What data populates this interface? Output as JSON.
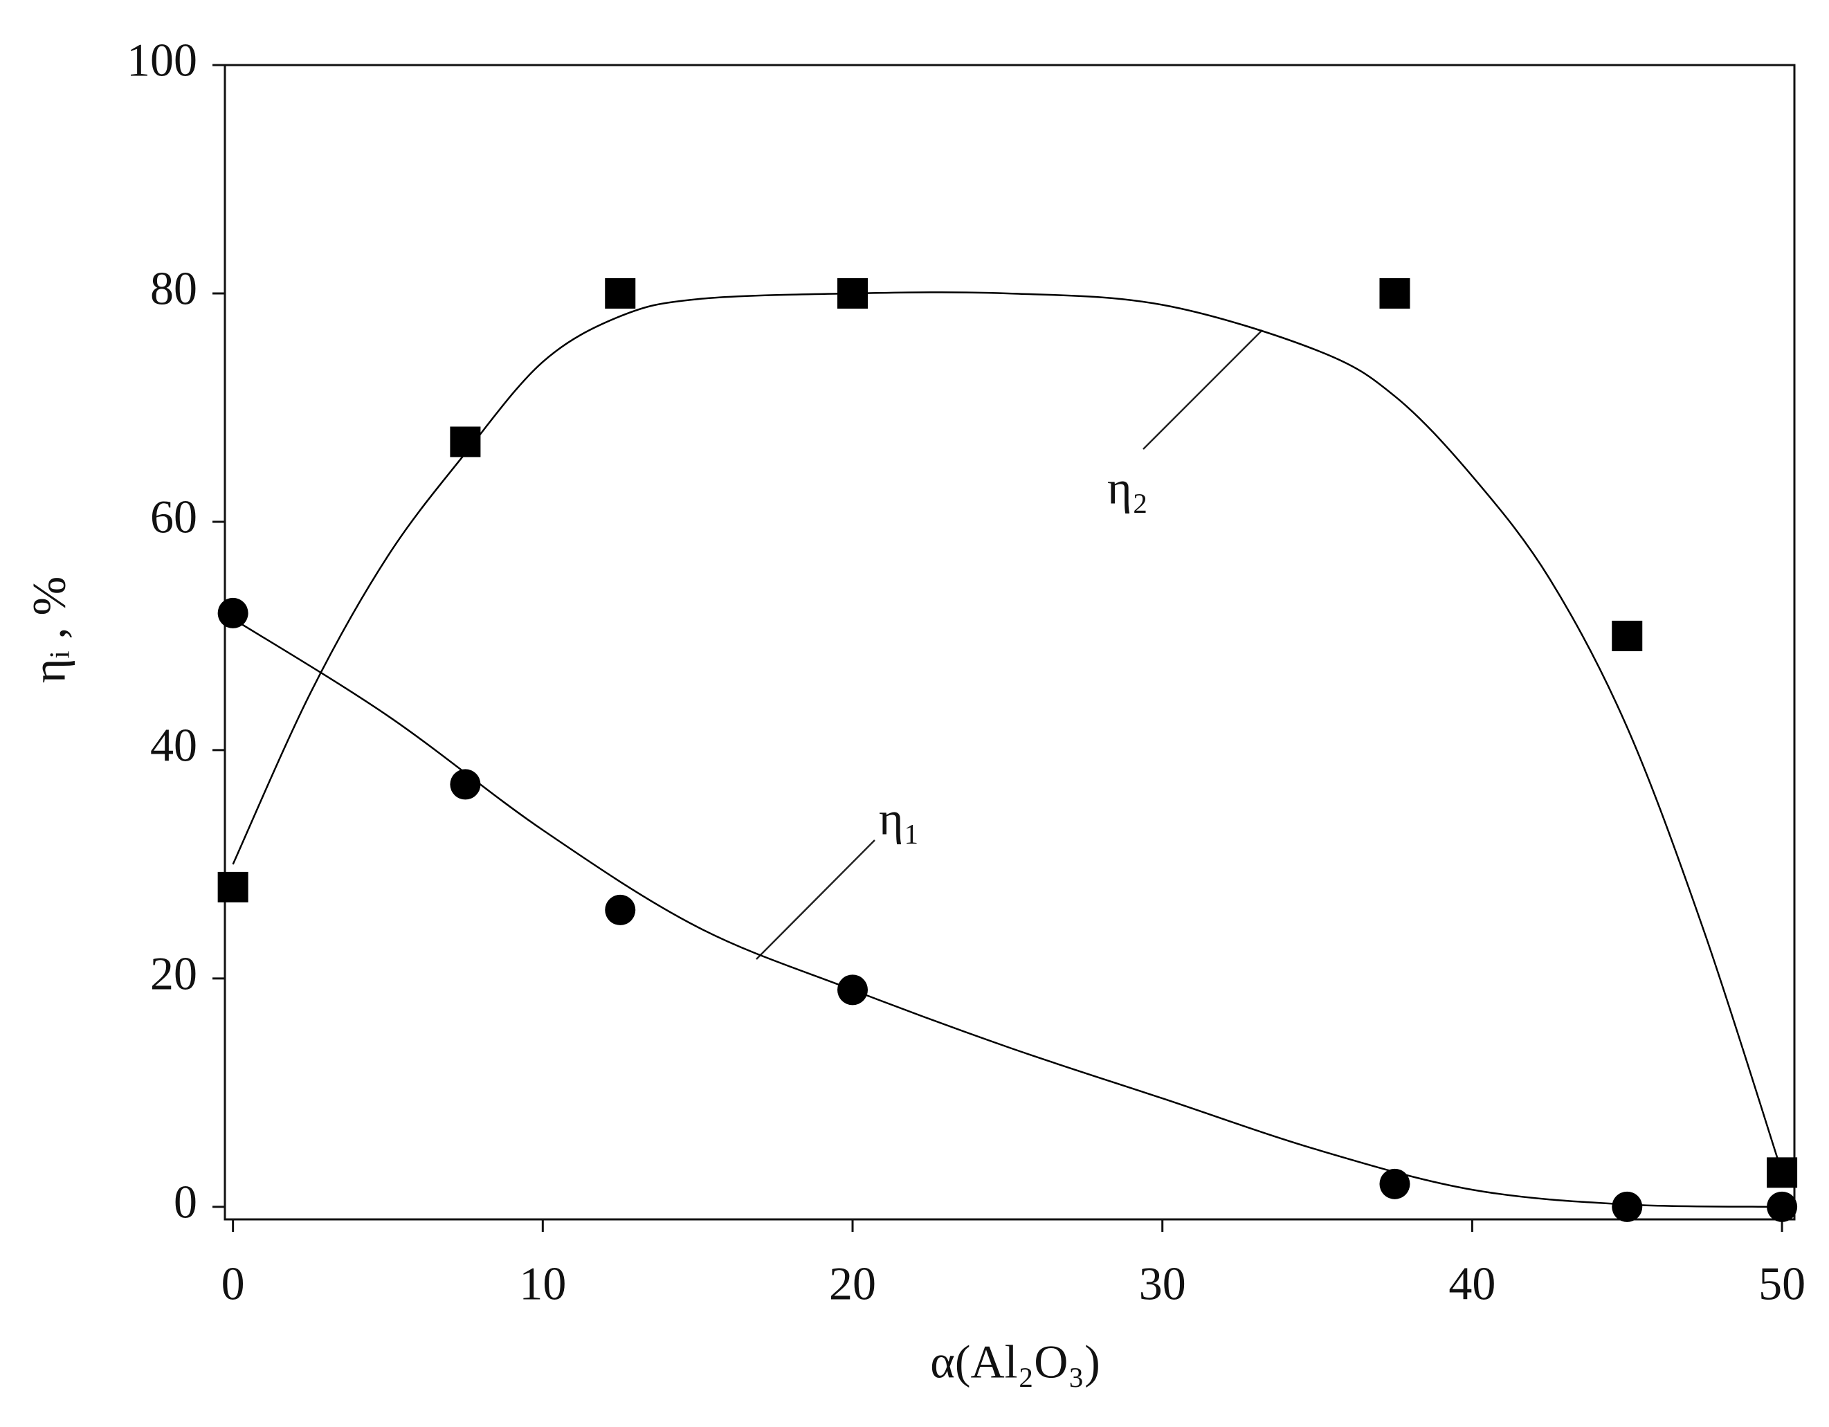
{
  "chart_data": {
    "type": "scatter",
    "x_label": "α(Al₂O₃)",
    "y_label": "ηᵢ , %",
    "xlim": [
      -0.26,
      50.4
    ],
    "ylim": [
      -1.1,
      100
    ],
    "xticks": [
      0,
      10,
      20,
      30,
      40,
      50
    ],
    "yticks": [
      0,
      20,
      40,
      60,
      80,
      100
    ],
    "series": [
      {
        "name": "η₁",
        "marker": "circle",
        "color": "#000000",
        "x": [
          0,
          7.5,
          12.5,
          20,
          37.5,
          45,
          50
        ],
        "values": [
          52,
          37,
          26,
          19,
          2,
          0,
          0
        ],
        "curve_x": [
          0,
          5,
          10,
          15,
          20,
          25,
          30,
          35,
          40,
          45,
          50
        ],
        "curve_values": [
          51.5,
          43,
          33,
          24.5,
          19,
          14,
          9.5,
          5,
          1.5,
          0.2,
          0
        ]
      },
      {
        "name": "η₂",
        "marker": "square",
        "color": "#000000",
        "x": [
          0,
          7.5,
          12.5,
          20,
          37.5,
          45,
          50
        ],
        "values": [
          28,
          67,
          80,
          80,
          80,
          50,
          3
        ],
        "curve_x": [
          0,
          2.5,
          5,
          7.5,
          10,
          12.5,
          15,
          20,
          25,
          30,
          35,
          37.5,
          40,
          42.5,
          45,
          47.5,
          50
        ],
        "curve_values": [
          30,
          45,
          57,
          66,
          74,
          78,
          79.5,
          80,
          80,
          79,
          75,
          71,
          64,
          55,
          42,
          24,
          3
        ]
      }
    ]
  }
}
